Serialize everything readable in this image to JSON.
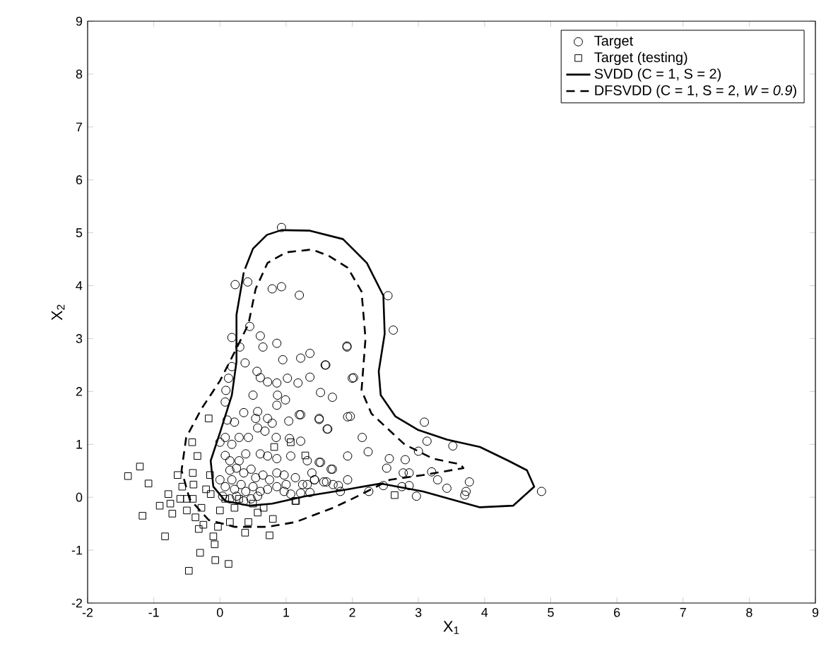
{
  "chart_data": {
    "type": "scatter",
    "xlabel": "X$_{1}$",
    "ylabel": "X$_{2}$",
    "xlim": [
      -2,
      9
    ],
    "ylim": [
      -2,
      9
    ],
    "xticks": [
      -2,
      -1,
      0,
      1,
      2,
      3,
      4,
      5,
      6,
      7,
      8,
      9
    ],
    "yticks": [
      -2,
      -1,
      0,
      1,
      2,
      3,
      4,
      5,
      6,
      7,
      8,
      9
    ],
    "legend": "top right",
    "series": [
      {
        "name": "Target",
        "type": "scatter",
        "marker": "circle",
        "color": "#000000",
        "x": [
          0.93,
          0.23,
          0.42,
          0.79,
          0.93,
          1.2,
          0.18,
          0.3,
          0.45,
          0.61,
          0.65,
          0.86,
          0.95,
          1.22,
          1.36,
          1.6,
          1.92,
          2.0,
          0.38,
          0.18,
          0.56,
          0.61,
          0.72,
          0.86,
          1.02,
          1.18,
          1.36,
          1.52,
          1.7,
          0.13,
          0.09,
          0.08,
          0.5,
          0.87,
          0.99,
          0.36,
          0.57,
          0.86,
          1.04,
          1.22,
          1.5,
          1.63,
          1.93,
          0.11,
          0.22,
          0.54,
          0.72,
          0.79,
          0.57,
          0.68,
          0.85,
          1.05,
          1.22,
          0.29,
          0.43,
          0.08,
          0.18,
          0.0,
          0.61,
          0.72,
          0.86,
          1.07,
          1.32,
          1.5,
          1.68,
          1.93,
          0.08,
          0.15,
          0.25,
          0.36,
          0.47,
          0.54,
          0.65,
          0.75,
          0.86,
          0.97,
          1.0,
          1.14,
          1.25,
          1.39,
          1.43,
          1.57,
          1.71,
          1.82,
          1.93,
          0.0,
          0.08,
          0.18,
          0.22,
          0.32,
          0.39,
          0.5,
          0.61,
          0.72,
          0.86,
          0.97,
          1.07,
          1.22,
          1.36,
          0.04,
          0.15,
          0.25,
          0.36,
          0.47,
          0.57,
          0.29,
          0.39,
          0.15,
          2.54,
          2.62,
          1.92,
          1.59,
          2.02,
          1.2,
          1.5,
          1.62,
          1.97,
          2.15,
          2.24,
          3.09,
          3.13,
          3.52,
          3.0,
          2.8,
          2.56,
          2.52,
          2.77,
          2.86,
          3.2,
          3.29,
          3.43,
          3.77,
          3.72,
          3.7,
          2.97,
          2.86,
          2.75,
          2.47,
          2.25,
          1.79,
          1.7,
          1.61,
          1.43,
          1.32,
          1.52,
          4.86
        ],
        "values": [
          5.1,
          4.02,
          4.07,
          3.94,
          3.98,
          3.82,
          3.02,
          2.84,
          3.23,
          3.05,
          2.84,
          2.91,
          2.6,
          2.63,
          2.72,
          2.5,
          2.86,
          2.25,
          2.54,
          2.47,
          2.38,
          2.26,
          2.18,
          2.16,
          2.25,
          2.16,
          2.27,
          1.98,
          1.89,
          2.25,
          2.02,
          1.8,
          1.93,
          1.93,
          1.84,
          1.6,
          1.62,
          1.74,
          1.44,
          1.56,
          1.49,
          1.29,
          1.52,
          1.46,
          1.42,
          1.49,
          1.49,
          1.4,
          1.31,
          1.25,
          1.13,
          1.11,
          1.06,
          1.13,
          1.13,
          1.13,
          1.0,
          1.04,
          0.82,
          0.78,
          0.73,
          0.78,
          0.69,
          0.66,
          0.53,
          0.78,
          0.79,
          0.51,
          0.55,
          0.46,
          0.53,
          0.37,
          0.42,
          0.33,
          0.46,
          0.42,
          0.24,
          0.37,
          0.24,
          0.46,
          0.33,
          0.29,
          0.24,
          0.11,
          0.33,
          0.33,
          0.2,
          0.33,
          0.15,
          0.24,
          0.11,
          0.2,
          0.11,
          0.15,
          0.2,
          0.11,
          0.06,
          0.08,
          0.09,
          0.02,
          -0.03,
          0.02,
          -0.07,
          -0.03,
          0.02,
          0.69,
          0.82,
          0.69,
          3.81,
          3.16,
          2.84,
          2.5,
          2.26,
          1.56,
          1.47,
          1.29,
          1.53,
          1.13,
          0.86,
          1.42,
          1.06,
          0.97,
          0.87,
          0.71,
          0.73,
          0.55,
          0.46,
          0.46,
          0.48,
          0.33,
          0.17,
          0.29,
          0.11,
          0.04,
          0.02,
          0.22,
          0.2,
          0.22,
          0.11,
          0.22,
          0.53,
          0.29,
          0.33,
          0.24,
          0.66,
          0.11
        ]
      },
      {
        "name": "Target (testing)",
        "type": "scatter",
        "marker": "square",
        "color": "#000000",
        "x": [
          -1.39,
          -1.21,
          -1.08,
          -1.17,
          -0.91,
          -0.78,
          -0.75,
          -0.72,
          -0.83,
          -0.64,
          -0.47,
          -0.3,
          -0.5,
          -0.41,
          -0.42,
          -0.34,
          -0.4,
          -0.41,
          -0.37,
          -0.25,
          -0.17,
          -0.15,
          -0.14,
          -0.1,
          -0.08,
          -0.03,
          0.0,
          0.13,
          0.15,
          0.22,
          0.38,
          0.43,
          0.57,
          0.66,
          0.75,
          0.8,
          0.82,
          1.07,
          1.29,
          1.14,
          -0.21,
          -0.28,
          -0.5,
          -0.57,
          0.08,
          0.29,
          0.5,
          -0.6,
          -0.32,
          -0.07,
          1.15,
          2.64
        ],
        "values": [
          0.4,
          0.58,
          0.26,
          -0.35,
          -0.16,
          0.06,
          -0.12,
          -0.31,
          -0.74,
          0.42,
          -1.39,
          -1.05,
          -0.25,
          0.46,
          1.04,
          0.78,
          0.24,
          -0.03,
          -0.38,
          -0.52,
          1.49,
          0.42,
          0.06,
          -0.74,
          -0.89,
          -0.56,
          -0.25,
          -1.26,
          -0.47,
          -0.2,
          -0.67,
          -0.47,
          -0.29,
          -0.2,
          -0.72,
          -0.41,
          0.95,
          1.04,
          0.79,
          -0.07,
          0.15,
          -0.2,
          -0.03,
          0.2,
          -0.03,
          -0.03,
          -0.12,
          -0.03,
          -0.6,
          -1.19,
          -0.07,
          0.04
        ]
      },
      {
        "name": "SVDD (C = 1, S = 2)",
        "type": "line",
        "line_style": "solid",
        "marker": "none",
        "color": "#000000",
        "x": [
          0.36,
          0.25,
          0.25,
          0.18,
          0.0,
          -0.14,
          -0.1,
          0.08,
          0.45,
          0.79,
          1.29,
          1.93,
          2.43,
          3.07,
          3.93,
          4.43,
          4.75,
          4.64,
          4.36,
          3.93,
          3.43,
          3.0,
          2.65,
          2.43,
          2.4,
          2.49,
          2.47,
          2.22,
          1.86,
          1.36,
          0.93,
          0.71,
          0.5,
          0.38
        ],
        "values": [
          4.25,
          3.45,
          2.56,
          1.93,
          1.22,
          0.69,
          0.2,
          -0.07,
          -0.16,
          -0.12,
          0.02,
          0.15,
          0.26,
          0.11,
          -0.19,
          -0.16,
          0.2,
          0.51,
          0.69,
          0.95,
          1.09,
          1.27,
          1.53,
          1.93,
          2.38,
          3.09,
          3.81,
          4.43,
          4.88,
          5.04,
          5.05,
          4.96,
          4.7,
          4.32
        ]
      },
      {
        "name": "DFSVDD (C = 1, S = 2, *W = 0.9*)",
        "type": "line",
        "line_style": "dashed",
        "marker": "none",
        "color": "#000000",
        "x": [
          1.36,
          1.0,
          0.72,
          0.54,
          0.43,
          0.22,
          0.0,
          -0.28,
          -0.51,
          -0.58,
          -0.46,
          -0.17,
          0.22,
          0.72,
          1.14,
          1.71,
          2.0,
          2.57,
          3.07,
          3.68,
          3.64,
          3.22,
          2.79,
          2.29,
          2.14,
          2.2,
          2.14,
          1.93,
          1.65,
          1.4
        ],
        "values": [
          4.68,
          4.63,
          4.43,
          3.94,
          3.27,
          2.74,
          2.2,
          1.67,
          1.13,
          0.51,
          -0.03,
          -0.43,
          -0.56,
          -0.56,
          -0.47,
          -0.2,
          -0.03,
          0.33,
          0.42,
          0.55,
          0.62,
          0.73,
          1.0,
          1.58,
          2.02,
          3.0,
          3.89,
          4.34,
          4.56,
          4.68
        ]
      }
    ]
  }
}
